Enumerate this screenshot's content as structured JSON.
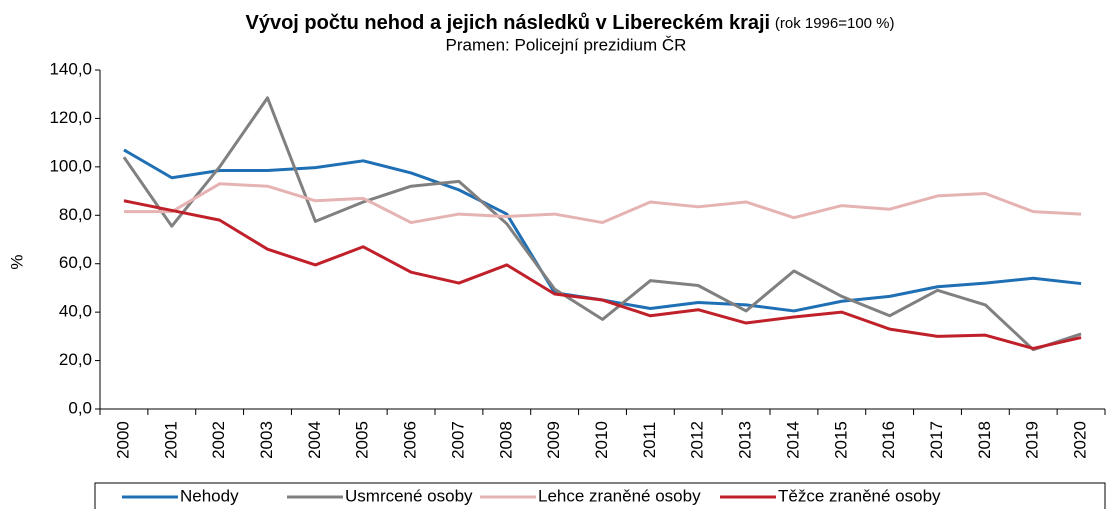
{
  "chart_data": {
    "type": "line",
    "title": "Vývoj počtu nehod a jejich následků v Libereckém kraji",
    "title_note": "(rok 1996=100 %)",
    "subtitle": "Pramen: Policejní prezidium ČR",
    "y_label": "%",
    "categories": [
      "2000",
      "2001",
      "2002",
      "2003",
      "2004",
      "2005",
      "2006",
      "2007",
      "2008",
      "2009",
      "2010",
      "2011",
      "2012",
      "2013",
      "2014",
      "2015",
      "2016",
      "2017",
      "2018",
      "2019",
      "2020"
    ],
    "series": [
      {
        "name": "Nehody",
        "color": "#1f6fb5",
        "values": [
          107,
          95.5,
          98.5,
          98.5,
          99.7,
          102.5,
          97.5,
          90.5,
          80.5,
          48,
          45,
          41.5,
          44,
          43,
          40.5,
          44.5,
          46.5,
          50.5,
          52,
          54,
          51.8
        ]
      },
      {
        "name": "Usmrcené osoby",
        "color": "#808080",
        "values": [
          104,
          75.5,
          100,
          128.5,
          77.5,
          85.5,
          92,
          94,
          76.5,
          49.5,
          37,
          53,
          51,
          40.5,
          57,
          46.5,
          38.5,
          49,
          43,
          24.5,
          31
        ]
      },
      {
        "name": "Lehce zraněné osoby",
        "color": "#e6b3b3",
        "values": [
          81.5,
          81.5,
          93,
          92,
          86,
          87,
          77,
          80.5,
          79.5,
          80.5,
          77,
          85.5,
          83.5,
          85.5,
          79,
          84,
          82.5,
          88,
          89,
          81.5,
          80.5
        ]
      },
      {
        "name": "Těžce zraněné osoby",
        "color": "#c0202a",
        "values": [
          86,
          82,
          78,
          66,
          59.5,
          67,
          56.5,
          52,
          59.5,
          47.5,
          45,
          38.5,
          41,
          35.5,
          38,
          40,
          33,
          30,
          30.5,
          25,
          29.5
        ]
      }
    ],
    "ylim": [
      0,
      140
    ],
    "yticks": [
      {
        "value": 0,
        "label": "0,0"
      },
      {
        "value": 20,
        "label": "20,0"
      },
      {
        "value": 40,
        "label": "40,0"
      },
      {
        "value": 60,
        "label": "60,0"
      },
      {
        "value": 80,
        "label": "80,0"
      },
      {
        "value": 100,
        "label": "100,0"
      },
      {
        "value": 120,
        "label": "120,0"
      },
      {
        "value": 140,
        "label": "140,0"
      }
    ],
    "grid": false,
    "legend": "bottom"
  }
}
